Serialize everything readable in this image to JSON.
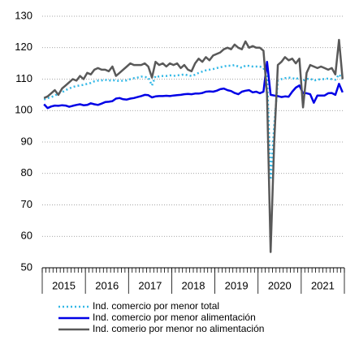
{
  "chart_data": {
    "type": "line",
    "x_labels": [
      "2015",
      "2016",
      "2017",
      "2018",
      "2019",
      "2020",
      "2021"
    ],
    "series": [
      {
        "name": "Ind. comercio por menor total",
        "color": "#33b8e6",
        "dash": "dotted",
        "values": [
          103.5,
          104,
          104.3,
          104.7,
          105.5,
          105.8,
          106.5,
          107,
          107.5,
          107.8,
          108,
          108.2,
          108.5,
          108.8,
          109.3,
          109.5,
          109.6,
          109.8,
          109.5,
          109.7,
          109.5,
          109.4,
          109.5,
          109.6,
          110,
          110.3,
          110.5,
          110.8,
          110.7,
          110.5,
          108,
          111,
          110.8,
          111,
          111,
          111.2,
          111,
          111.2,
          111.3,
          111.5,
          111.2,
          111,
          111.4,
          112,
          112.4,
          112.8,
          113,
          113.2,
          113.5,
          113.8,
          114,
          114.3,
          114.2,
          114.5,
          114,
          113.6,
          114.3,
          114.2,
          114,
          114,
          114,
          113.5,
          111,
          78,
          95,
          109.5,
          110,
          110.3,
          110.5,
          110.3,
          110,
          110.5,
          109.5,
          110,
          110.2,
          109.5,
          109.8,
          110,
          110,
          110.2,
          110,
          109.8,
          111.5,
          110
        ]
      },
      {
        "name": "Ind. comercio por menor alimentación",
        "color": "#0000e6",
        "dash": "solid",
        "values": [
          102,
          100.8,
          101.3,
          101.6,
          101.5,
          101.7,
          101.6,
          101.2,
          101.5,
          101.8,
          102,
          101.7,
          101.8,
          102.3,
          102,
          101.8,
          102.2,
          102.7,
          102.8,
          103,
          103.8,
          104,
          103.6,
          103.5,
          103.8,
          104,
          104.3,
          104.6,
          105,
          104.9,
          104.2,
          104.5,
          104.6,
          104.6,
          104.7,
          104.6,
          104.8,
          104.9,
          105,
          105.2,
          105.3,
          105.2,
          105.4,
          105.4,
          105.6,
          106,
          106.1,
          106,
          106.3,
          106.8,
          107,
          106.5,
          106.2,
          105.6,
          105.2,
          106,
          106.3,
          106.5,
          105.8,
          106,
          105.5,
          106,
          115.5,
          105,
          104.8,
          104.6,
          104.3,
          104.5,
          104.4,
          106,
          107.3,
          108,
          105.5,
          105.5,
          105.2,
          102.5,
          104.8,
          104.8,
          104.8,
          105.5,
          105.6,
          105,
          108.5,
          105.8
        ]
      },
      {
        "name": "Ind. comerio por menor no alimentación",
        "color": "#595959",
        "dash": "solid",
        "values": [
          104,
          104.5,
          105.5,
          106.5,
          105,
          107,
          108,
          109,
          110,
          109.5,
          111,
          110,
          112,
          111.5,
          113,
          113.5,
          113,
          113,
          112.5,
          114,
          111,
          112,
          113,
          114,
          115,
          114.5,
          114.5,
          114.5,
          115,
          114,
          110.5,
          115.5,
          114.5,
          115,
          114,
          115,
          114.5,
          115,
          113.5,
          114.5,
          113,
          112.5,
          115,
          116.5,
          115.5,
          117,
          116,
          117.5,
          118,
          118.5,
          119.5,
          120,
          119.5,
          121,
          120,
          119.5,
          122,
          120,
          120.5,
          120,
          120,
          119,
          105,
          55,
          90,
          114.5,
          115.5,
          117,
          116,
          116.5,
          115,
          116.5,
          101,
          112,
          114.5,
          114,
          113.5,
          114,
          113.5,
          113,
          113.5,
          111.5,
          122.5,
          110
        ]
      }
    ],
    "ylim": [
      50,
      130
    ],
    "yticks": [
      50,
      60,
      70,
      80,
      90,
      100,
      110,
      120,
      130
    ],
    "grid": true
  }
}
